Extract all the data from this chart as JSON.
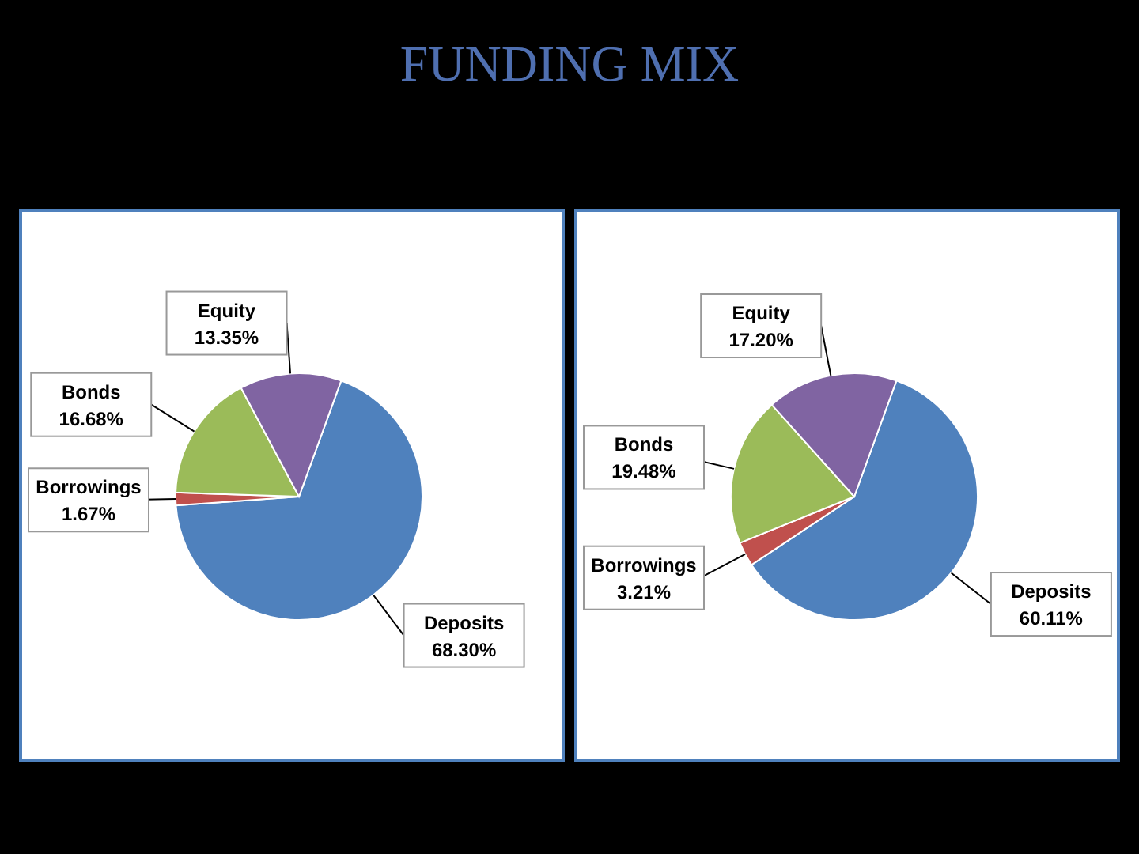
{
  "chart_data": [
    {
      "type": "pie",
      "title": "FUNDING MIX",
      "categories": [
        "Deposits",
        "Borrowings",
        "Bonds",
        "Equity"
      ],
      "values": [
        68.3,
        1.67,
        16.68,
        13.35
      ],
      "value_labels": [
        "68.30%",
        "1.67%",
        "16.68%",
        "13.35%"
      ],
      "colors": [
        "#4f81bd",
        "#c0504d",
        "#9bbb59",
        "#8064a2"
      ],
      "legend": false
    },
    {
      "type": "pie",
      "categories": [
        "Deposits",
        "Borrowings",
        "Bonds",
        "Equity"
      ],
      "values": [
        60.11,
        3.21,
        19.48,
        17.2
      ],
      "value_labels": [
        "60.11%",
        "3.21%",
        "19.48%",
        "17.20%"
      ],
      "colors": [
        "#4f81bd",
        "#c0504d",
        "#9bbb59",
        "#8064a2"
      ],
      "legend": false
    }
  ]
}
